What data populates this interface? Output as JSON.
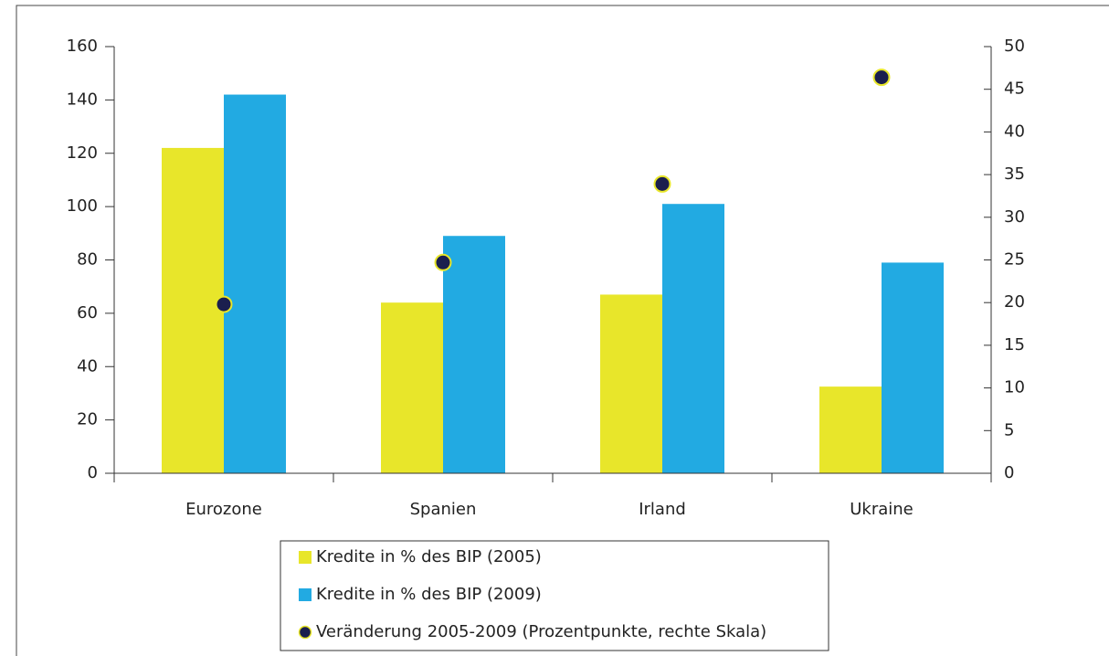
{
  "chart_data": {
    "type": "bar",
    "categories": [
      "Eurozone",
      "Spanien",
      "Irland",
      "Ukraine"
    ],
    "series": [
      {
        "name": "Kredite in % des BIP (2005)",
        "color": "#e8e62a",
        "values": [
          122,
          64,
          67,
          32.5
        ]
      },
      {
        "name": "Kredite in % des BIP (2009)",
        "color": "#22aae2",
        "values": [
          142,
          89,
          101,
          79
        ]
      },
      {
        "name": "Veränderung 2005-2009 (Prozentpunkte, rechte Skala)",
        "color": "#1b1f4e",
        "type": "scatter",
        "axis": "y2",
        "values": [
          19.8,
          24.7,
          33.9,
          46.4
        ]
      }
    ],
    "ylim": [
      0,
      160
    ],
    "yticks": [
      0,
      20,
      40,
      60,
      80,
      100,
      120,
      140,
      160
    ],
    "y2lim": [
      0,
      50
    ],
    "y2ticks": [
      0,
      5,
      10,
      15,
      20,
      25,
      30,
      35,
      40,
      45,
      50
    ],
    "grid": false,
    "legend": "bottom",
    "annotations": [
      "€"
    ]
  }
}
